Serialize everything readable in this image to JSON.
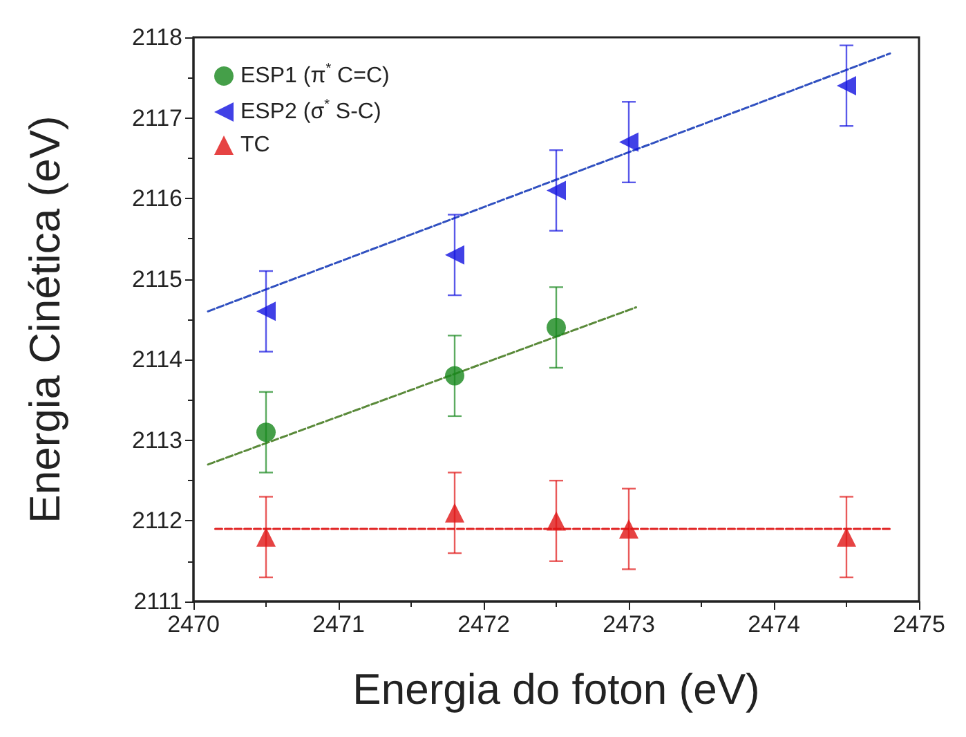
{
  "chart_data": {
    "type": "scatter",
    "xlabel": "Energia do foton (eV)",
    "ylabel": "Energia Cinética (eV)",
    "xlim": [
      2470,
      2475
    ],
    "xticks": [
      2470,
      2471,
      2472,
      2473,
      2474,
      2475
    ],
    "ylim": [
      2111,
      2118
    ],
    "yticks": [
      2111,
      2112,
      2113,
      2114,
      2115,
      2116,
      2117,
      2118
    ],
    "grid": false,
    "legend": "top left",
    "series": [
      {
        "name": "ESP1 (π$^{*}$ C=C)",
        "color": "#17871c",
        "marker": "circle",
        "x": [
          2470.5,
          2471.8,
          2472.5
        ],
        "values": [
          2113.1,
          2113.8,
          2114.4
        ],
        "errors": [
          0.5,
          0.5,
          0.5
        ]
      },
      {
        "name": "ESP2 (σ$^{*}$ S-C)",
        "color": "#1212e0",
        "marker": "triangle-left",
        "x": [
          2470.5,
          2471.8,
          2472.5,
          2473,
          2474.5
        ],
        "values": [
          2114.6,
          2115.3,
          2116.1,
          2116.7,
          2117.4
        ],
        "errors": [
          0.5,
          0.5,
          0.5,
          0.5,
          0.5
        ]
      },
      {
        "name": "TC",
        "color": "#e01414",
        "marker": "triangle",
        "x": [
          2470.5,
          2471.8,
          2472.5,
          2473,
          2474.5
        ],
        "values": [
          2111.8,
          2112.1,
          2112.0,
          2111.9,
          2111.8
        ],
        "errors": [
          0.5,
          0.5,
          0.5,
          0.5,
          0.5
        ]
      },
      {
        "type": "line",
        "color": "#5a8a3a",
        "line_style": "dashed",
        "marker": "none",
        "x": [
          2470.1,
          2473.05
        ],
        "values": [
          2112.7,
          2114.65
        ]
      },
      {
        "type": "line",
        "color": "#3050c0",
        "line_style": "dashed",
        "marker": "none",
        "x": [
          2470.1,
          2474.8
        ],
        "values": [
          2114.6,
          2117.8
        ]
      },
      {
        "type": "line",
        "color": "#e02020",
        "line_style": "dashed",
        "marker": "none",
        "x": [
          2470.15,
          2474.8
        ],
        "values": [
          2111.9,
          2111.9
        ]
      }
    ]
  }
}
